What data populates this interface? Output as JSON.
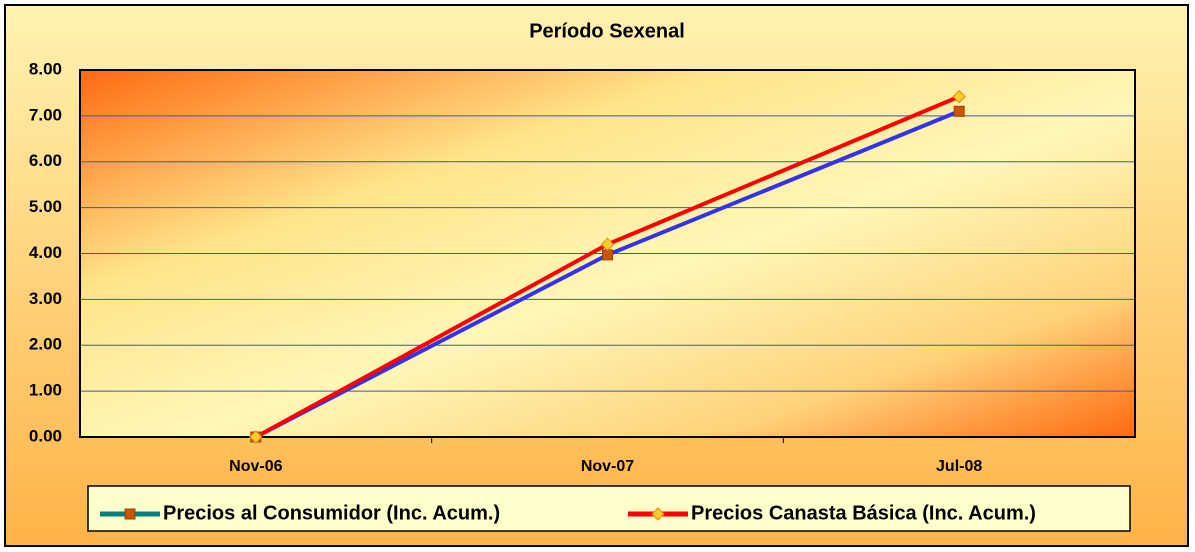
{
  "chart_data": {
    "type": "line",
    "title": "Período Sexenal",
    "categories": [
      "Nov-06",
      "Nov-07",
      "Jul-08"
    ],
    "series": [
      {
        "name": "Precios al Consumidor (Inc. Acum.)",
        "color": "#3333ee",
        "legend_color": "#008080",
        "marker": "square",
        "marker_color": "#cc5500",
        "values": [
          0,
          3.97,
          7.1
        ]
      },
      {
        "name": "Precios Canasta Básica (Inc. Acum.)",
        "color": "#ff0000",
        "legend_color": "#ff0000",
        "marker": "diamond",
        "marker_color": "#ffcc33",
        "values": [
          0,
          4.2,
          7.42
        ]
      }
    ],
    "ylim": [
      0,
      8
    ],
    "yticks": [
      {
        "value": 0,
        "label": "0.00"
      },
      {
        "value": 1,
        "label": "1.00"
      },
      {
        "value": 2,
        "label": "2.00"
      },
      {
        "value": 3,
        "label": "3.00"
      },
      {
        "value": 4,
        "label": "4.00"
      },
      {
        "value": 5,
        "label": "5.00"
      },
      {
        "value": 6,
        "label": "6.00"
      },
      {
        "value": 7,
        "label": "7.00"
      },
      {
        "value": 8,
        "label": "8.00"
      }
    ],
    "grid": true
  }
}
